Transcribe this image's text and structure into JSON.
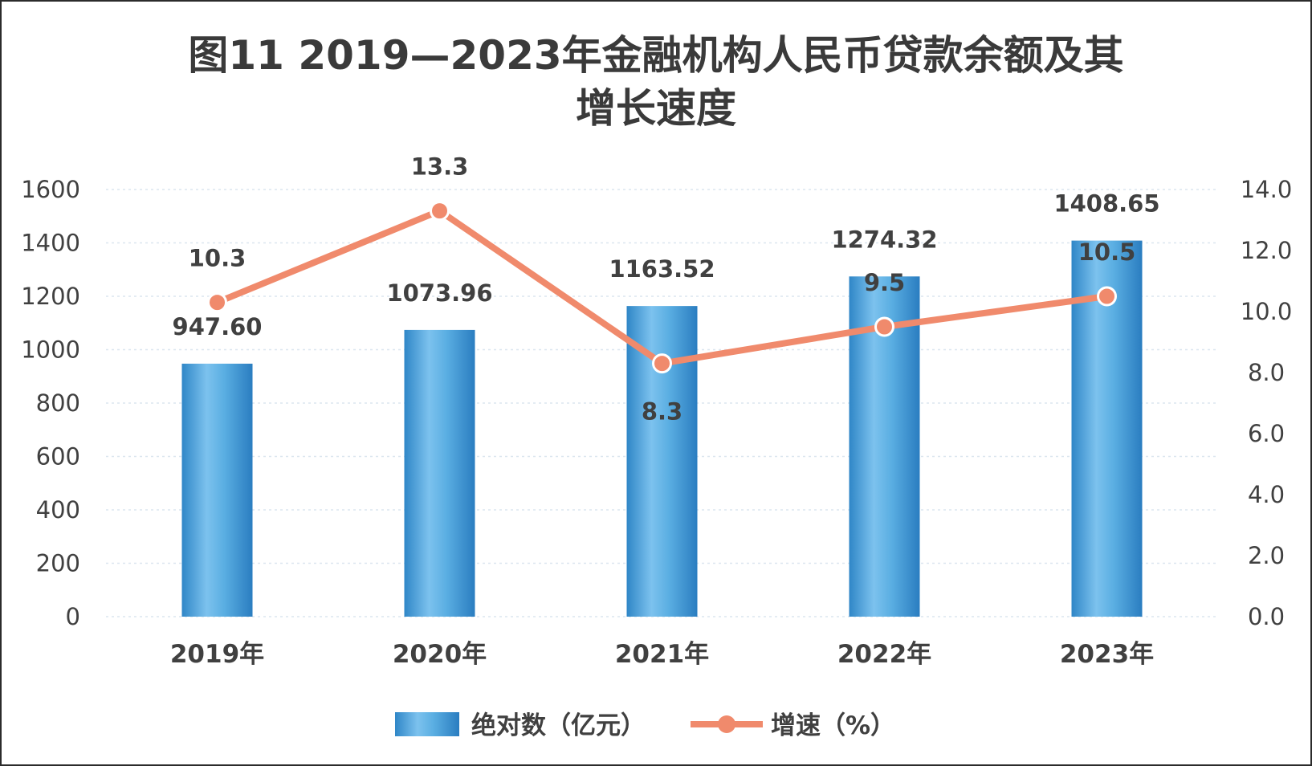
{
  "chart_data": {
    "type": "bar+line",
    "title_lines": [
      "图11 2019—2023年金融机构人民币贷款余额及其",
      "增长速度"
    ],
    "categories": [
      "2019年",
      "2020年",
      "2021年",
      "2022年",
      "2023年"
    ],
    "series": [
      {
        "name": "绝对数（亿元）",
        "type": "bar",
        "axis": "left",
        "values": [
          947.6,
          1073.96,
          1163.52,
          1274.32,
          1408.65
        ],
        "labels": [
          "947.60",
          "1073.96",
          "1163.52",
          "1274.32",
          "1408.65"
        ],
        "color": "#4a9fd8"
      },
      {
        "name": "增速（%）",
        "type": "line",
        "axis": "right",
        "values": [
          10.3,
          13.3,
          8.3,
          9.5,
          10.5
        ],
        "labels": [
          "10.3",
          "13.3",
          "8.3",
          "9.5",
          "10.5"
        ],
        "color": "#f08a6c"
      }
    ],
    "y_left": {
      "min": 0,
      "max": 1600,
      "ticks": [
        "0",
        "200",
        "400",
        "600",
        "800",
        "1000",
        "1200",
        "1400",
        "1600"
      ]
    },
    "y_right": {
      "min": 0,
      "max": 14,
      "ticks": [
        "0.0",
        "2.0",
        "4.0",
        "6.0",
        "8.0",
        "10.0",
        "12.0",
        "14.0"
      ]
    },
    "grid": true,
    "legend_position": "bottom"
  }
}
